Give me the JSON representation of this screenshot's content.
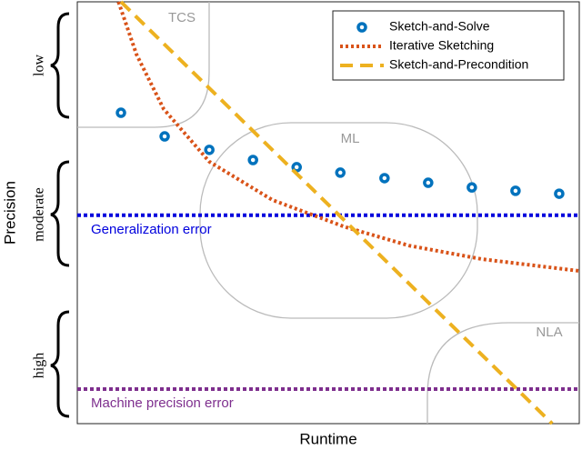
{
  "chart_data": {
    "type": "line",
    "xlabel": "Runtime",
    "ylabel": "Precision",
    "xlim": [
      0,
      100
    ],
    "ylim": [
      0,
      100
    ],
    "series": [
      {
        "name": "Sketch-and-Solve",
        "color": "#0072bd",
        "style": "dots",
        "x": [
          8.7,
          17.4,
          26.3,
          35,
          43.7,
          52.4,
          61.2,
          69.9,
          78.6,
          87.3,
          96
        ],
        "values": [
          73.7,
          68.1,
          64.9,
          62.5,
          60.8,
          59.5,
          58.2,
          57.1,
          56,
          55.2,
          54.5
        ]
      },
      {
        "name": "Iterative Sketching",
        "color": "#d95319",
        "style": "dotted",
        "x": [
          8.2,
          11.8,
          17.2,
          26.3,
          38.9,
          53.4,
          66.1,
          80.6,
          100
        ],
        "values": [
          100,
          87.5,
          74.6,
          62.1,
          53,
          46.6,
          42.2,
          39,
          36.2
        ]
      },
      {
        "name": "Sketch-and-Precondition",
        "color": "#edb120",
        "style": "dashed",
        "x": [
          8.7,
          94.6
        ],
        "values": [
          100,
          0
        ]
      }
    ],
    "reference_lines": [
      {
        "label": "Generalization error",
        "value": 49.4,
        "color": "#0000dd"
      },
      {
        "label": "Machine precision error",
        "value": 8.2,
        "color": "#7e2f8e"
      }
    ],
    "regions": [
      "TCS",
      "ML",
      "NLA"
    ],
    "precision_levels": [
      "low",
      "moderate",
      "high"
    ]
  }
}
